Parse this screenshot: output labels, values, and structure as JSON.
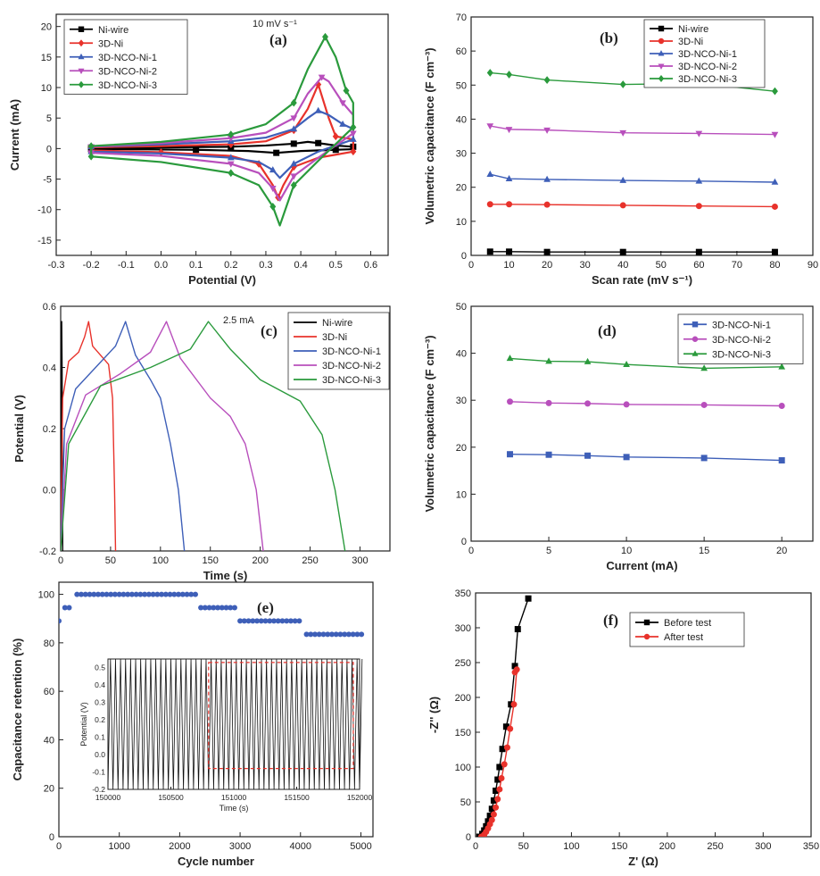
{
  "chart_data": [
    {
      "panel": "(a)",
      "type": "line",
      "annotation": "10 mV s⁻¹",
      "xlabel": "Potential (V)",
      "ylabel": "Current (mA)",
      "xlim": [
        -0.3,
        0.65
      ],
      "ylim": [
        -17.5,
        22
      ],
      "xticks": [
        -0.3,
        -0.2,
        -0.1,
        0.0,
        0.1,
        0.2,
        0.3,
        0.4,
        0.5,
        0.6
      ],
      "yticks": [
        -15,
        -10,
        -5,
        0,
        5,
        10,
        15,
        20
      ],
      "legend": "top-left",
      "series": [
        {
          "name": "Ni-wire",
          "color": "#000000",
          "marker": "square",
          "x": [
            -0.2,
            0.0,
            0.2,
            0.3,
            0.38,
            0.42,
            0.45,
            0.5,
            0.55,
            0.55,
            0.5,
            0.4,
            0.33,
            0.25,
            0.1,
            -0.1,
            -0.2,
            -0.2
          ],
          "y": [
            0.1,
            0.2,
            0.3,
            0.5,
            0.8,
            1.1,
            0.9,
            0.5,
            0.3,
            -0.1,
            -0.2,
            -0.4,
            -0.7,
            -0.4,
            -0.2,
            -0.1,
            -0.1,
            0.1
          ]
        },
        {
          "name": "3D-Ni",
          "color": "#e8322b",
          "marker": "diamond",
          "x": [
            -0.2,
            0.0,
            0.2,
            0.3,
            0.38,
            0.42,
            0.45,
            0.48,
            0.5,
            0.55,
            0.55,
            0.45,
            0.38,
            0.35,
            0.335,
            0.32,
            0.28,
            0.2,
            0.0,
            -0.2,
            -0.2
          ],
          "y": [
            0.2,
            0.4,
            0.7,
            1.2,
            3,
            6.5,
            10.5,
            5,
            2,
            1.5,
            -0.5,
            -1.5,
            -3,
            -6,
            -8,
            -6,
            -2.5,
            -1.2,
            -0.6,
            -0.3,
            0.2
          ]
        },
        {
          "name": "3D-NCO-Ni-1",
          "color": "#3e5fb8",
          "marker": "triangle",
          "x": [
            -0.2,
            0.0,
            0.2,
            0.3,
            0.38,
            0.42,
            0.45,
            0.48,
            0.52,
            0.55,
            0.55,
            0.45,
            0.38,
            0.34,
            0.32,
            0.28,
            0.2,
            0.0,
            -0.2,
            -0.2
          ],
          "y": [
            0.3,
            0.7,
            1.2,
            1.8,
            3.2,
            5,
            6.2,
            5.5,
            4,
            3.2,
            1.5,
            -0.5,
            -2.5,
            -4.8,
            -3.5,
            -2.2,
            -1.5,
            -0.8,
            -0.5,
            0.3
          ]
        },
        {
          "name": "3D-NCO-Ni-2",
          "color": "#b84fbc",
          "marker": "triangle-down",
          "x": [
            -0.2,
            0.0,
            0.2,
            0.3,
            0.38,
            0.42,
            0.46,
            0.48,
            0.52,
            0.55,
            0.55,
            0.45,
            0.38,
            0.34,
            0.32,
            0.28,
            0.2,
            0.0,
            -0.2,
            -0.2
          ],
          "y": [
            0.3,
            0.9,
            1.7,
            2.6,
            5,
            9,
            11.7,
            11,
            7.5,
            5.5,
            2.5,
            -1.5,
            -4.5,
            -8.5,
            -6.5,
            -4,
            -2.5,
            -1.2,
            -0.7,
            0.3
          ]
        },
        {
          "name": "3D-NCO-Ni-3",
          "color": "#2a9a3c",
          "marker": "diamond",
          "x": [
            -0.2,
            0.0,
            0.2,
            0.3,
            0.38,
            0.42,
            0.47,
            0.5,
            0.53,
            0.55,
            0.55,
            0.45,
            0.38,
            0.34,
            0.32,
            0.28,
            0.2,
            0.0,
            -0.2,
            -0.2
          ],
          "y": [
            0.4,
            1.1,
            2.3,
            4,
            7.5,
            13,
            18.3,
            15,
            9.5,
            7.5,
            3.5,
            -2,
            -6,
            -12.6,
            -9.5,
            -6,
            -4,
            -2.2,
            -1.3,
            0.4
          ]
        }
      ]
    },
    {
      "panel": "(b)",
      "type": "line",
      "xlabel": "Scan rate (mV s⁻¹)",
      "ylabel": "Volumetric capacitance (F cm⁻³)",
      "xlim": [
        0,
        90
      ],
      "ylim": [
        0,
        70
      ],
      "xticks": [
        0,
        10,
        20,
        30,
        40,
        50,
        60,
        70,
        80,
        90
      ],
      "yticks": [
        0,
        10,
        20,
        30,
        40,
        50,
        60,
        70
      ],
      "legend": "top-right",
      "x": [
        5,
        10,
        20,
        40,
        60,
        80
      ],
      "series": [
        {
          "name": "Ni-wire",
          "color": "#000000",
          "marker": "square",
          "values": [
            1.1,
            1.1,
            1.0,
            1.0,
            1.0,
            1.0
          ]
        },
        {
          "name": "3D-Ni",
          "color": "#e8322b",
          "marker": "circle",
          "values": [
            15.0,
            15.0,
            14.9,
            14.7,
            14.5,
            14.3
          ]
        },
        {
          "name": "3D-NCO-Ni-1",
          "color": "#3e5fb8",
          "marker": "triangle",
          "values": [
            23.8,
            22.5,
            22.3,
            22.0,
            21.8,
            21.5
          ]
        },
        {
          "name": "3D-NCO-Ni-2",
          "color": "#b84fbc",
          "marker": "triangle-down",
          "values": [
            38.0,
            37.0,
            36.8,
            36.0,
            35.8,
            35.5
          ]
        },
        {
          "name": "3D-NCO-Ni-3",
          "color": "#2a9a3c",
          "marker": "diamond",
          "values": [
            53.6,
            53.1,
            51.5,
            50.2,
            50.5,
            48.2
          ]
        }
      ]
    },
    {
      "panel": "(c)",
      "type": "line",
      "annotation": "2.5 mA",
      "xlabel": "Time (s)",
      "ylabel": "Potential (V)",
      "xlim": [
        0,
        330
      ],
      "ylim": [
        -0.2,
        0.6
      ],
      "xticks": [
        0,
        50,
        100,
        150,
        200,
        250,
        300
      ],
      "yticks": [
        -0.2,
        0.0,
        0.2,
        0.4,
        0.6
      ],
      "legend": "top-right",
      "series": [
        {
          "name": "Ni-wire",
          "color": "#000000",
          "x": [
            0,
            0.6,
            1.0,
            1.4,
            2.0
          ],
          "y": [
            -0.2,
            0.4,
            0.55,
            0.4,
            -0.2
          ]
        },
        {
          "name": "3D-Ni",
          "color": "#e8322b",
          "x": [
            0,
            2,
            8,
            18,
            24,
            28,
            32,
            40,
            48,
            52,
            54,
            55
          ],
          "y": [
            -0.2,
            0.3,
            0.42,
            0.45,
            0.5,
            0.55,
            0.47,
            0.44,
            0.41,
            0.3,
            0.0,
            -0.2
          ]
        },
        {
          "name": "3D-NCO-Ni-1",
          "color": "#3e5fb8",
          "x": [
            0,
            4,
            15,
            35,
            55,
            65,
            75,
            90,
            100,
            110,
            118,
            124
          ],
          "y": [
            -0.2,
            0.2,
            0.33,
            0.4,
            0.47,
            0.55,
            0.44,
            0.36,
            0.3,
            0.15,
            0.0,
            -0.2
          ]
        },
        {
          "name": "3D-NCO-Ni-2",
          "color": "#b84fbc",
          "x": [
            0,
            6,
            25,
            60,
            90,
            106,
            120,
            150,
            170,
            185,
            196,
            203
          ],
          "y": [
            -0.2,
            0.15,
            0.31,
            0.38,
            0.45,
            0.55,
            0.43,
            0.3,
            0.24,
            0.15,
            0.0,
            -0.2
          ]
        },
        {
          "name": "3D-NCO-Ni-3",
          "color": "#2a9a3c",
          "x": [
            0,
            8,
            40,
            90,
            130,
            148,
            170,
            200,
            240,
            262,
            275,
            285
          ],
          "y": [
            -0.2,
            0.15,
            0.34,
            0.4,
            0.46,
            0.55,
            0.46,
            0.36,
            0.29,
            0.18,
            0.0,
            -0.2
          ]
        }
      ]
    },
    {
      "panel": "(d)",
      "type": "line",
      "xlabel": "Current (mA)",
      "ylabel": "Volumetric capacitance (F cm⁻³)",
      "xlim": [
        0,
        22
      ],
      "ylim": [
        0,
        50
      ],
      "xticks": [
        0,
        5,
        10,
        15,
        20
      ],
      "yticks": [
        0,
        10,
        20,
        30,
        40,
        50
      ],
      "legend": "top-right",
      "x": [
        2.5,
        5,
        7.5,
        10,
        15,
        20
      ],
      "series": [
        {
          "name": "3D-NCO-Ni-1",
          "color": "#3e5fb8",
          "marker": "square",
          "values": [
            18.5,
            18.4,
            18.2,
            17.9,
            17.7,
            17.2
          ]
        },
        {
          "name": "3D-NCO-Ni-2",
          "color": "#b84fbc",
          "marker": "circle",
          "values": [
            29.7,
            29.4,
            29.3,
            29.1,
            29.0,
            28.8
          ]
        },
        {
          "name": "3D-NCO-Ni-3",
          "color": "#2a9a3c",
          "marker": "triangle",
          "values": [
            38.9,
            38.3,
            38.2,
            37.6,
            36.8,
            37.1
          ]
        }
      ]
    },
    {
      "panel": "(e)",
      "type": "scatter",
      "xlabel": "Cycle number",
      "ylabel": "Capacitance retention (%)",
      "xlim": [
        0,
        5200
      ],
      "ylim": [
        0,
        105
      ],
      "xticks": [
        0,
        1000,
        2000,
        3000,
        4000,
        5000
      ],
      "yticks": [
        0,
        20,
        40,
        60,
        80,
        100
      ],
      "series": [
        {
          "name": "",
          "color": "#3e5fb8",
          "marker": "circle",
          "steps": [
            {
              "x_start": 0,
              "x_end": 60,
              "value": 89
            },
            {
              "x_start": 100,
              "x_end": 220,
              "value": 94.5
            },
            {
              "x_start": 300,
              "x_end": 2300,
              "value": 100
            },
            {
              "x_start": 2350,
              "x_end": 2950,
              "value": 94.5
            },
            {
              "x_start": 3000,
              "x_end": 4000,
              "value": 89
            },
            {
              "x_start": 4100,
              "x_end": 5050,
              "value": 83.5
            }
          ]
        }
      ],
      "inset": {
        "xlabel": "Time (s)",
        "ylabel": "Potential (V)",
        "xlim": [
          150000,
          152000
        ],
        "ylim": [
          -0.2,
          0.55
        ],
        "xticks": [
          150000,
          150500,
          151000,
          151500,
          152000
        ],
        "yticks": [
          -0.2,
          -0.1,
          0.0,
          0.1,
          0.2,
          0.3,
          0.4,
          0.5
        ],
        "cycle_period_s": 40,
        "v_max": 0.55,
        "v_min": -0.2
      }
    },
    {
      "panel": "(f)",
      "type": "line",
      "xlabel": "Z' (Ω)",
      "ylabel": "-Z'' (Ω)",
      "xlim": [
        0,
        350
      ],
      "ylim": [
        0,
        350
      ],
      "xticks": [
        0,
        50,
        100,
        150,
        200,
        250,
        300,
        350
      ],
      "yticks": [
        0,
        50,
        100,
        150,
        200,
        250,
        300,
        350
      ],
      "legend": "top-right",
      "series": [
        {
          "name": "Before test",
          "color": "#000000",
          "marker": "square",
          "x": [
            4,
            7,
            9,
            11,
            13,
            15,
            17,
            19,
            21,
            23,
            25,
            28,
            32,
            37,
            41,
            44,
            55
          ],
          "y": [
            0,
            4,
            9,
            15,
            22,
            30,
            40,
            52,
            66,
            82,
            100,
            126,
            158,
            190,
            245,
            298,
            342
          ]
        },
        {
          "name": "After test",
          "color": "#e8322b",
          "marker": "circle",
          "x": [
            6,
            9,
            11,
            13,
            15,
            17,
            19,
            21,
            23,
            25,
            27,
            30,
            33,
            36,
            40,
            43,
            41
          ],
          "y": [
            0,
            3,
            7,
            12,
            18,
            24,
            32,
            42,
            54,
            68,
            84,
            104,
            128,
            155,
            190,
            240,
            236
          ]
        }
      ]
    }
  ]
}
